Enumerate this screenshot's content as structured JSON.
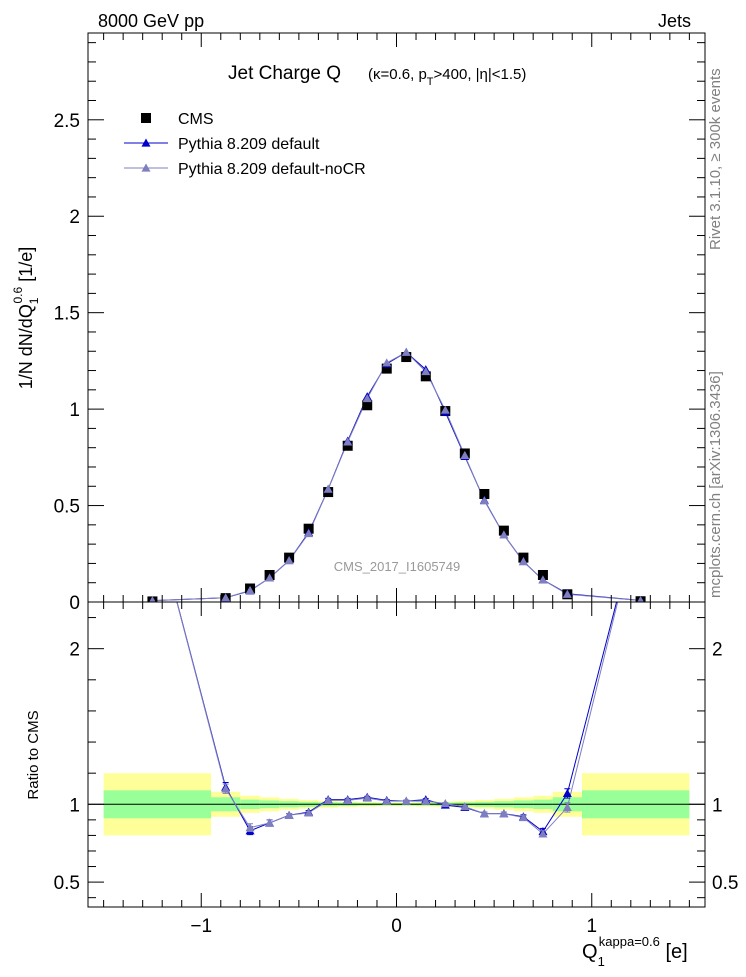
{
  "header": {
    "left": "8000 GeV pp",
    "right": "Jets"
  },
  "side_labels": {
    "rivet": "Rivet 3.1.10, ≥ 300k events",
    "mcplots": "mcplots.cern.ch [arXiv:1306.3436]"
  },
  "watermark": "CMS_2017_I1605749",
  "colors": {
    "data": "#000000",
    "pythia_default": "#0000cc",
    "pythia_nocr": "#7f7fbf",
    "band_inner": "#99ff99",
    "band_outer": "#ffff99"
  },
  "chart_data": [
    {
      "type": "scatter",
      "panel": "main",
      "title": "Jet Charge Q",
      "title_suffix": "(κ=0.6, p_T>400, |η|<1.5)",
      "ylabel": "1/N dN/dQ_1^0.6 [1/e]",
      "xlim": [
        -1.58,
        1.58
      ],
      "ylim": [
        0,
        2.95
      ],
      "yticks": [
        "0",
        "0.5",
        "1",
        "1.5",
        "2",
        "2.5"
      ],
      "legend_position": "top-left",
      "legend": [
        "CMS",
        "Pythia 8.209 default",
        "Pythia 8.209 default-noCR"
      ],
      "series": [
        {
          "name": "CMS",
          "style": "square",
          "x": [
            -1.25,
            -0.875,
            -0.75,
            -0.65,
            -0.55,
            -0.45,
            -0.35,
            -0.25,
            -0.15,
            -0.05,
            0.05,
            0.15,
            0.25,
            0.35,
            0.45,
            0.55,
            0.65,
            0.75,
            0.875,
            1.25
          ],
          "y": [
            0.003,
            0.02,
            0.07,
            0.14,
            0.23,
            0.38,
            0.57,
            0.81,
            1.02,
            1.21,
            1.27,
            1.17,
            0.99,
            0.77,
            0.56,
            0.37,
            0.23,
            0.14,
            0.04,
            0.004
          ]
        },
        {
          "name": "Pythia 8.209 default",
          "style": "triangle",
          "x": [
            -1.25,
            -0.875,
            -0.75,
            -0.65,
            -0.55,
            -0.45,
            -0.35,
            -0.25,
            -0.15,
            -0.05,
            0.05,
            0.15,
            0.25,
            0.35,
            0.45,
            0.55,
            0.65,
            0.75,
            0.875,
            1.25
          ],
          "y": [
            0.007,
            0.022,
            0.058,
            0.125,
            0.215,
            0.36,
            0.585,
            0.835,
            1.065,
            1.235,
            1.295,
            1.205,
            0.985,
            0.755,
            0.528,
            0.348,
            0.21,
            0.115,
            0.043,
            0.008
          ]
        },
        {
          "name": "Pythia 8.209 default-noCR",
          "style": "triangle",
          "x": [
            -1.25,
            -0.875,
            -0.75,
            -0.65,
            -0.55,
            -0.45,
            -0.35,
            -0.25,
            -0.15,
            -0.05,
            0.05,
            0.15,
            0.25,
            0.35,
            0.45,
            0.55,
            0.65,
            0.75,
            0.875,
            1.25
          ],
          "y": [
            0.007,
            0.022,
            0.06,
            0.125,
            0.215,
            0.355,
            0.585,
            0.83,
            1.055,
            1.24,
            1.295,
            1.195,
            0.995,
            0.76,
            0.525,
            0.348,
            0.21,
            0.115,
            0.04,
            0.008
          ]
        }
      ]
    },
    {
      "type": "line",
      "panel": "ratio",
      "ylabel": "Ratio to CMS",
      "xlabel": "Q_1^kappa=0.6 [e]",
      "xlim": [
        -1.58,
        1.58
      ],
      "ylim": [
        0.34,
        2.3
      ],
      "yticks": [
        "0.5",
        "1",
        "2"
      ],
      "xticks": [
        "−1",
        "0",
        "1"
      ],
      "reference_line": 1,
      "bands": {
        "edges": [
          -1.5,
          -0.95,
          -0.8,
          -0.7,
          -0.6,
          -0.5,
          -0.4,
          -0.3,
          -0.2,
          -0.1,
          0.0,
          0.1,
          0.2,
          0.3,
          0.4,
          0.5,
          0.6,
          0.7,
          0.8,
          0.95,
          1.5
        ],
        "inner_err": [
          0.09,
          0.045,
          0.03,
          0.025,
          0.02,
          0.016,
          0.013,
          0.011,
          0.009,
          0.008,
          0.008,
          0.009,
          0.011,
          0.013,
          0.016,
          0.02,
          0.025,
          0.03,
          0.045,
          0.09
        ],
        "outer_err": [
          0.2,
          0.08,
          0.055,
          0.045,
          0.035,
          0.028,
          0.022,
          0.018,
          0.015,
          0.013,
          0.013,
          0.015,
          0.018,
          0.022,
          0.028,
          0.035,
          0.045,
          0.055,
          0.08,
          0.2
        ]
      },
      "series": [
        {
          "name": "Pythia 8.209 default",
          "x": [
            -1.25,
            -0.875,
            -0.75,
            -0.65,
            -0.55,
            -0.45,
            -0.35,
            -0.25,
            -0.15,
            -0.05,
            0.05,
            0.15,
            0.25,
            0.35,
            0.45,
            0.55,
            0.65,
            0.75,
            0.875,
            1.25
          ],
          "y": [
            2.9,
            1.11,
            0.83,
            0.88,
            0.93,
            0.95,
            1.03,
            1.03,
            1.045,
            1.025,
            1.02,
            1.03,
            0.995,
            0.98,
            0.94,
            0.94,
            0.92,
            0.825,
            1.07,
            2.9
          ],
          "err": [
            0,
            0.03,
            0.025,
            0.02,
            0.01,
            0.01,
            0.008,
            0.008,
            0.006,
            0.006,
            0.006,
            0.006,
            0.006,
            0.008,
            0.01,
            0.01,
            0.012,
            0.02,
            0.03,
            0
          ]
        },
        {
          "name": "Pythia 8.209 default-noCR",
          "x": [
            -1.25,
            -0.875,
            -0.75,
            -0.65,
            -0.55,
            -0.45,
            -0.35,
            -0.25,
            -0.15,
            -0.05,
            0.05,
            0.15,
            0.25,
            0.35,
            0.45,
            0.55,
            0.65,
            0.75,
            0.875,
            1.25
          ],
          "y": [
            2.9,
            1.1,
            0.85,
            0.88,
            0.93,
            0.945,
            1.025,
            1.025,
            1.04,
            1.02,
            1.02,
            1.02,
            1.005,
            0.985,
            0.94,
            0.94,
            0.915,
            0.81,
            0.98,
            2.9
          ],
          "err": [
            0,
            0.03,
            0.025,
            0.02,
            0.01,
            0.01,
            0.008,
            0.008,
            0.006,
            0.006,
            0.006,
            0.006,
            0.006,
            0.008,
            0.01,
            0.01,
            0.012,
            0.02,
            0.03,
            0
          ]
        }
      ]
    }
  ]
}
